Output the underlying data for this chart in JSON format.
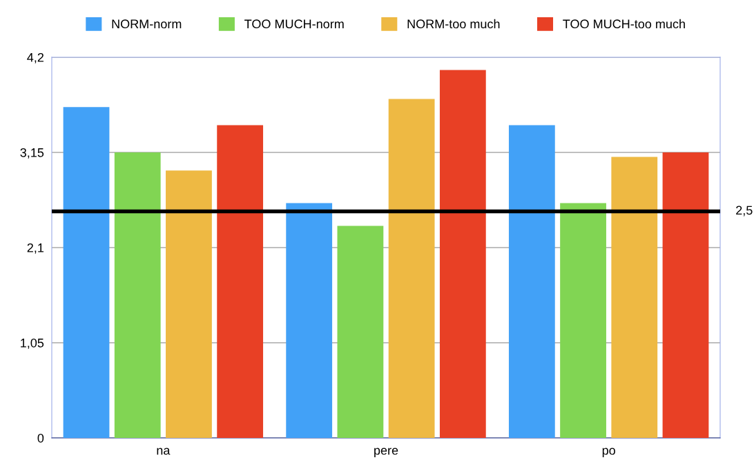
{
  "chart_data": {
    "type": "bar",
    "categories": [
      "na",
      "pere",
      "po"
    ],
    "series": [
      {
        "name": "NORM-norm",
        "color": "#42a1f7",
        "values": [
          3.65,
          2.59,
          3.45
        ]
      },
      {
        "name": "TOO MUCH-norm",
        "color": "#81d553",
        "values": [
          3.15,
          2.34,
          2.59
        ]
      },
      {
        "name": "NORM-too much",
        "color": "#eeb943",
        "values": [
          2.95,
          3.74,
          3.1
        ]
      },
      {
        "name": "TOO MUCH-too much",
        "color": "#e84025",
        "values": [
          3.45,
          4.06,
          3.15
        ]
      }
    ],
    "ylim": [
      0,
      4.2
    ],
    "yticks": [
      0,
      {
        "value": 1.05,
        "label": "1,05"
      },
      {
        "value": 2.1,
        "label": "2,1"
      },
      {
        "value": 3.15,
        "label": "3,15"
      },
      {
        "value": 4.2,
        "label": "4,2"
      }
    ],
    "ref_lines": [
      {
        "axis": "y",
        "value": 2.5,
        "label": "2,5",
        "color": "#000000"
      }
    ],
    "grid": "y",
    "legend": "top"
  }
}
